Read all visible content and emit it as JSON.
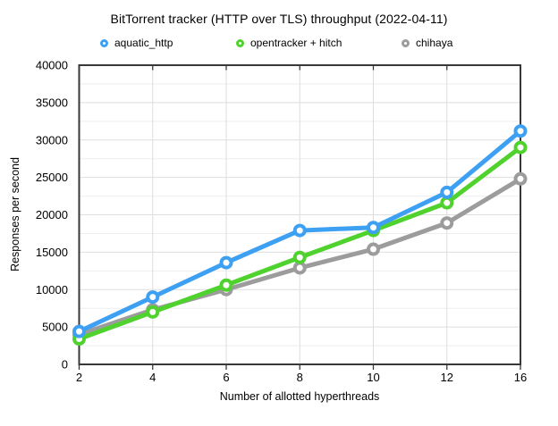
{
  "chart_data": {
    "type": "line",
    "title": "BitTorrent tracker (HTTP over TLS) throughput (2022-04-11)",
    "xlabel": "Number of allotted hyperthreads",
    "ylabel": "Responses per second",
    "categories": [
      "2",
      "4",
      "6",
      "8",
      "10",
      "12",
      "16"
    ],
    "ylim": [
      0,
      40000
    ],
    "y_major_step": 5000,
    "y_minor_step": 2500,
    "y_tick_labels": [
      "0",
      "5000",
      "10000",
      "15000",
      "20000",
      "25000",
      "30000",
      "35000",
      "40000"
    ],
    "grid": true,
    "legend_position": "top",
    "marker": "open-circle",
    "series": [
      {
        "name": "aquatic_http",
        "color": "#3DA0F2",
        "values": [
          4400,
          9000,
          13600,
          17900,
          18300,
          23000,
          31200
        ]
      },
      {
        "name": "opentracker + hitch",
        "color": "#4FD22E",
        "values": [
          3400,
          7000,
          10600,
          14300,
          17900,
          21600,
          29000
        ]
      },
      {
        "name": "chihaya",
        "color": "#9C9C9C",
        "values": [
          4000,
          7300,
          10000,
          12900,
          15400,
          18900,
          24800
        ]
      }
    ],
    "draw_order_note": "chihaya behind, opentracker middle, aquatic_http on top"
  },
  "style_colors": {
    "frame": "#383838",
    "grid_major": "#dedede",
    "grid_minor": "#eeeeee",
    "marker_fill": "#ffffff",
    "background": "#ffffff"
  }
}
